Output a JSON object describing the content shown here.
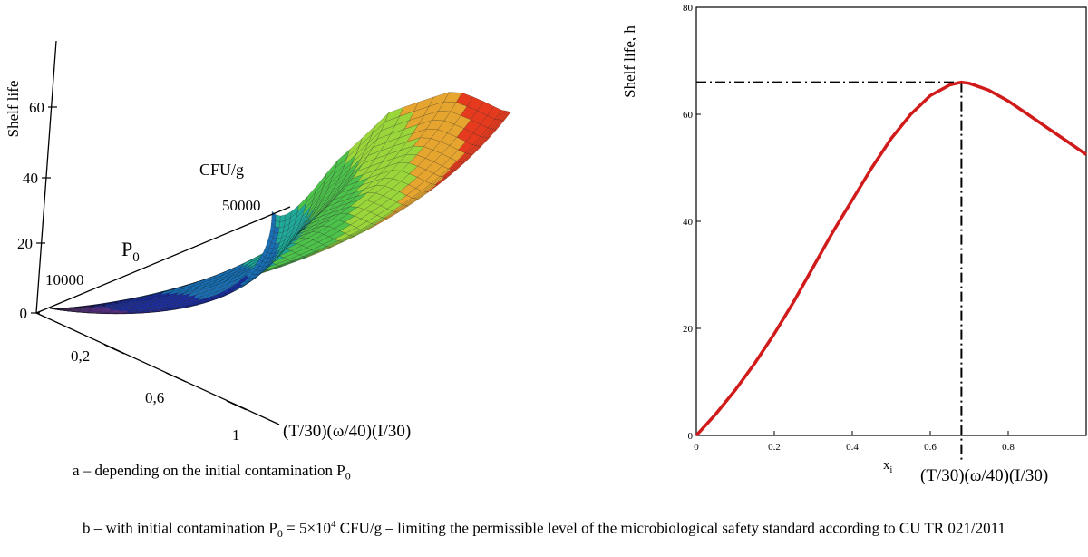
{
  "chart_data": [
    {
      "type": "surface",
      "zlabel": "Shelf life",
      "z_ticks": [
        "0",
        "20",
        "40",
        "60"
      ],
      "p_label_base": "P",
      "p_label_sub": "0",
      "p_unit": "CFU/g",
      "p_ticks": [
        "10000",
        "50000"
      ],
      "x_label": "(T/30)(ω/40)(I/30)",
      "x_ticks": [
        "0,2",
        "0,6",
        "1"
      ],
      "colormap": [
        "#5b2c90",
        "#1c2d9e",
        "#1a6fb4",
        "#1faa9a",
        "#4cc24a",
        "#9ad63a",
        "#e6a52e",
        "#e53a1d"
      ]
    },
    {
      "type": "line",
      "ylabel": "Shelf life, h",
      "xlabel_base": "x",
      "xlabel_sub": "i",
      "xlabel_expr": "(T/30)(ω/40)(I/30)",
      "xlim": [
        0,
        1.0
      ],
      "ylim": [
        0,
        80
      ],
      "x_ticks": [
        0,
        0.2,
        0.4,
        0.6,
        0.8
      ],
      "y_ticks": [
        0,
        20,
        40,
        60,
        80
      ],
      "series": [
        {
          "color": "#d11a1a",
          "x": [
            0,
            0.05,
            0.1,
            0.15,
            0.2,
            0.25,
            0.3,
            0.35,
            0.4,
            0.45,
            0.5,
            0.55,
            0.6,
            0.65,
            0.68,
            0.7,
            0.75,
            0.8,
            0.85,
            0.9,
            0.95,
            1.0
          ],
          "y": [
            0,
            4,
            8.5,
            13.5,
            19,
            25,
            31.5,
            38,
            44,
            50,
            55.5,
            60,
            63.5,
            65.5,
            66,
            65.8,
            64.5,
            62.5,
            60,
            57.5,
            55,
            52.5
          ]
        }
      ],
      "optimum": {
        "x": 0.68,
        "y": 66
      }
    }
  ],
  "captions": {
    "a_prefix": "a – depending on the initial contamination P",
    "a_sub": "0",
    "b_part1": "b – with initial contamination P",
    "b_sub": "0",
    "b_part2": " = 5×10",
    "b_sup": "4",
    "b_part3": " CFU/g – limiting the permissible level of the microbiological safety standard according to CU TR 021/2011"
  }
}
